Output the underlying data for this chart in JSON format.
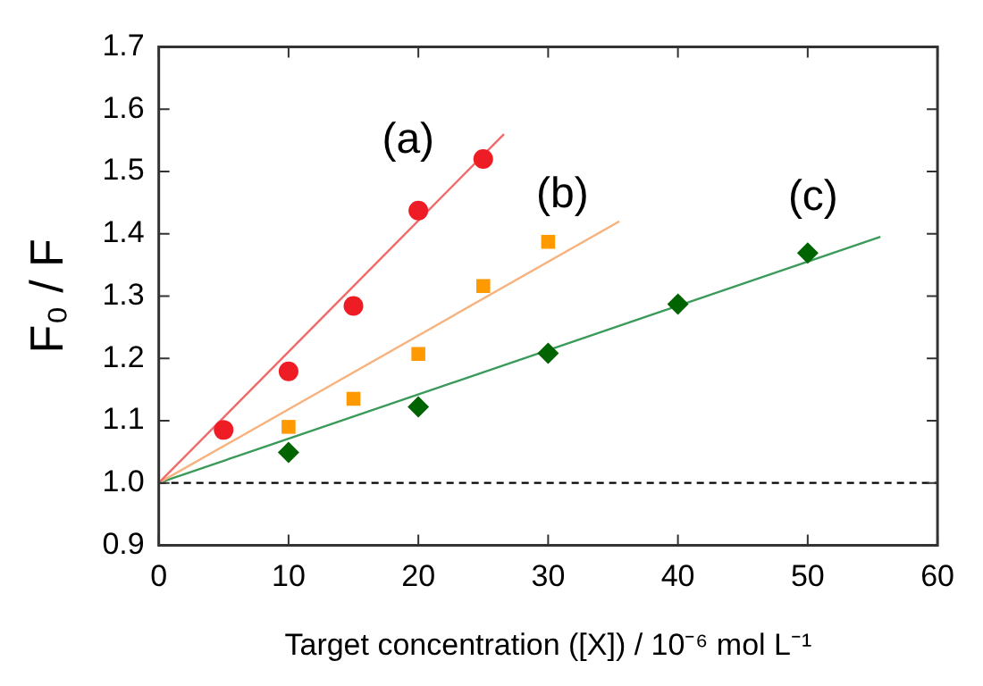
{
  "chart_data": {
    "type": "scatter",
    "xlabel": "Target concentration ([X]) / 10⁻⁶ mol L⁻¹",
    "ylabel": "F₀ / F",
    "xlim": [
      0,
      60
    ],
    "xticks": [
      0,
      10,
      20,
      30,
      40,
      50,
      60
    ],
    "ylim": [
      0.9,
      1.7
    ],
    "yticks": [
      {
        "value": 0.9,
        "label": "0.9"
      },
      {
        "value": 1.0,
        "label": "1.0"
      },
      {
        "value": 1.1,
        "label": "1.1"
      },
      {
        "value": 1.2,
        "label": "1.2"
      },
      {
        "value": 1.3,
        "label": "1.3"
      },
      {
        "value": 1.4,
        "label": "1.4"
      },
      {
        "value": 1.5,
        "label": "1.5"
      },
      {
        "value": 1.6,
        "label": "1.6"
      },
      {
        "value": 1.7,
        "label": "1.7"
      }
    ],
    "grid": false,
    "legend": false,
    "series": [
      {
        "name": "(a)",
        "type": "scatter",
        "marker": "circle",
        "color": "#ee1c25",
        "x": [
          5,
          10,
          15,
          20,
          25
        ],
        "values": [
          1.085,
          1.179,
          1.284,
          1.437,
          1.52
        ]
      },
      {
        "name": "(b)",
        "type": "scatter",
        "marker": "square",
        "color": "#ff9900",
        "x": [
          10,
          15,
          20,
          25,
          30
        ],
        "values": [
          1.09,
          1.135,
          1.207,
          1.316,
          1.387
        ]
      },
      {
        "name": "(c)",
        "type": "scatter",
        "marker": "diamond",
        "color": "#006400",
        "x": [
          10,
          20,
          30,
          40,
          50
        ],
        "values": [
          1.049,
          1.122,
          1.208,
          1.287,
          1.369
        ]
      },
      {
        "type": "line",
        "marker": "none",
        "color": "#f06a6a",
        "x": [
          0,
          26.6
        ],
        "values": [
          1,
          1.56
        ]
      },
      {
        "type": "line",
        "marker": "none",
        "color": "#f7b27e",
        "x": [
          0,
          35.5
        ],
        "values": [
          1,
          1.42
        ]
      },
      {
        "type": "line",
        "marker": "none",
        "color": "#3a9a5a",
        "x": [
          0,
          55.6
        ],
        "values": [
          1,
          1.395
        ]
      }
    ],
    "ref_lines": [
      {
        "axis": "y",
        "value": 1.0,
        "color": "#000000",
        "line_style": "dashed"
      }
    ]
  }
}
